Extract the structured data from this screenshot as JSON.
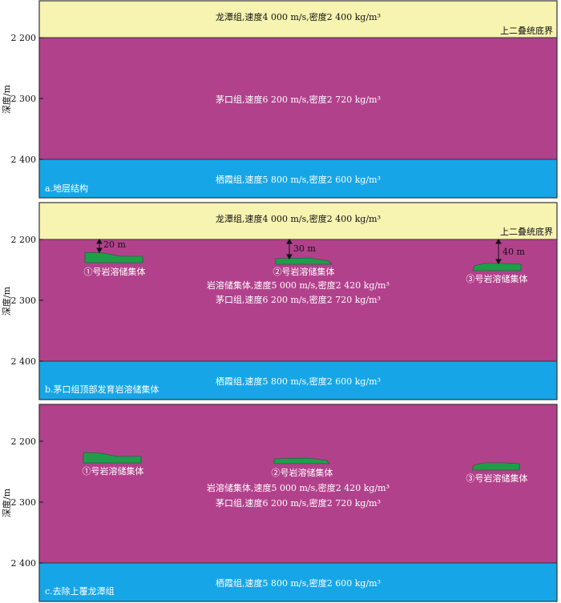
{
  "axis": {
    "title": "深度/m",
    "ticks": [
      "2 200",
      "2 300",
      "2 400"
    ]
  },
  "colors": {
    "longtan": "#f7f3b0",
    "maokou": "#b2418c",
    "qixia": "#16a6e8",
    "karst": "#1f9e4a",
    "frame": "#333333"
  },
  "labels": {
    "longtan": "龙潭组,速度4 000 m/s,密度2 400 kg/m³",
    "boundary": "上二叠统底界",
    "maokou": "茅口组,速度6 200 m/s,密度2 720 kg/m³",
    "qixia": "栖霞组,速度5 800 m/s,密度2 600 kg/m³",
    "karst_props": "岩溶储集体,速度5 000 m/s,密度2 420 kg/m³",
    "body1": "①号岩溶储集体",
    "body2": "②号岩溶储集体",
    "body3": "③号岩溶储集体",
    "gap1": "20 m",
    "gap2": "30 m",
    "gap3": "40 m"
  },
  "panels": {
    "a": {
      "caption": "a.地层结构"
    },
    "b": {
      "caption": "b.茅口组顶部发育岩溶储集体"
    },
    "c": {
      "caption": "c.去除上覆龙潭组"
    }
  }
}
